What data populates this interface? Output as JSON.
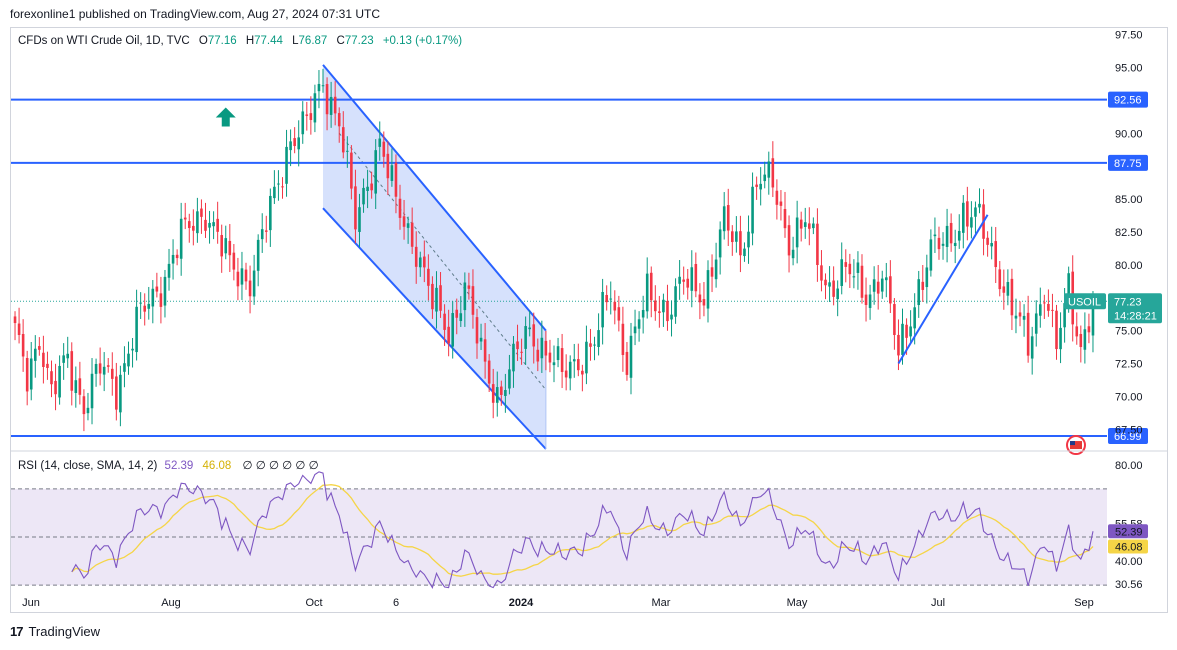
{
  "header": {
    "published": "forexonline1 published on TradingView.com, Aug 27, 2024 07:31 UTC"
  },
  "legend": {
    "symbol": "CFDs on WTI Crude Oil, 1D, TVC",
    "open_label": "O",
    "open": "77.16",
    "high_label": "H",
    "high": "77.44",
    "low_label": "L",
    "low": "76.87",
    "close_label": "C",
    "close": "77.23",
    "change": "+0.13 (+0.17%)"
  },
  "rsi_legend": {
    "label": "RSI (14, close, SMA, 14, 2)",
    "rsi_value": "52.39",
    "sma_value": "46.08",
    "empty_values": "∅  ∅  ∅  ∅  ∅  ∅"
  },
  "brand": {
    "name": "TradingView"
  },
  "colors": {
    "up": "#089981",
    "down": "#f23645",
    "line": "#2962ff",
    "channel_fill": "#c8d7fb",
    "rsi": "#7e57c2",
    "rsi_sma": "#f5d547",
    "rsi_band": "#ede7f6",
    "price_tag": "#26a69a"
  },
  "chart_data": {
    "type": "candlestick",
    "x_labels": [
      "Jun",
      "Aug",
      "Oct",
      "6",
      "2024",
      "Mar",
      "May",
      "Jul",
      "Sep"
    ],
    "bold_x_label": "2024",
    "price_axis_ticks": [
      "97.50",
      "95.00",
      "90.00",
      "85.00",
      "82.50",
      "80.00",
      "75.00",
      "72.50",
      "70.00",
      "67.50"
    ],
    "ylim": [
      66.0,
      98.0
    ],
    "horizontal_levels": [
      {
        "value": 92.56,
        "label": "92.56"
      },
      {
        "value": 87.75,
        "label": "87.75"
      },
      {
        "value": 66.99,
        "label": "66.99"
      }
    ],
    "last_price": {
      "symbol": "USOIL",
      "value": "77.23",
      "countdown": "14:28:21"
    },
    "price_path_anchors": [
      {
        "x": 0,
        "y": 74.5
      },
      {
        "x": 3,
        "y": 71.5
      },
      {
        "x": 6,
        "y": 74.8
      },
      {
        "x": 9,
        "y": 70.0
      },
      {
        "x": 13,
        "y": 72.8
      },
      {
        "x": 17,
        "y": 69.5
      },
      {
        "x": 21,
        "y": 72.0
      },
      {
        "x": 25,
        "y": 70.8
      },
      {
        "x": 30,
        "y": 75.5
      },
      {
        "x": 35,
        "y": 78.0
      },
      {
        "x": 41,
        "y": 82.0
      },
      {
        "x": 47,
        "y": 84.3
      },
      {
        "x": 53,
        "y": 79.8
      },
      {
        "x": 58,
        "y": 79.0
      },
      {
        "x": 63,
        "y": 84.0
      },
      {
        "x": 68,
        "y": 89.8
      },
      {
        "x": 72,
        "y": 90.5
      },
      {
        "x": 76,
        "y": 94.0
      },
      {
        "x": 80,
        "y": 91.0
      },
      {
        "x": 84,
        "y": 83.0
      },
      {
        "x": 87,
        "y": 86.5
      },
      {
        "x": 90,
        "y": 89.5
      },
      {
        "x": 94,
        "y": 84.5
      },
      {
        "x": 99,
        "y": 81.5
      },
      {
        "x": 103,
        "y": 77.0
      },
      {
        "x": 107,
        "y": 75.0
      },
      {
        "x": 111,
        "y": 78.5
      },
      {
        "x": 115,
        "y": 73.0
      },
      {
        "x": 119,
        "y": 70.2
      },
      {
        "x": 123,
        "y": 72.5
      },
      {
        "x": 127,
        "y": 75.0
      },
      {
        "x": 131,
        "y": 73.5
      },
      {
        "x": 135,
        "y": 71.5
      },
      {
        "x": 139,
        "y": 73.0
      },
      {
        "x": 143,
        "y": 74.0
      },
      {
        "x": 147,
        "y": 78.0
      },
      {
        "x": 151,
        "y": 73.0
      },
      {
        "x": 156,
        "y": 77.5
      },
      {
        "x": 161,
        "y": 76.8
      },
      {
        "x": 165,
        "y": 78.5
      },
      {
        "x": 170,
        "y": 78.0
      },
      {
        "x": 175,
        "y": 83.0
      },
      {
        "x": 179,
        "y": 81.0
      },
      {
        "x": 183,
        "y": 86.5
      },
      {
        "x": 187,
        "y": 86.0
      },
      {
        "x": 191,
        "y": 82.0
      },
      {
        "x": 195,
        "y": 83.2
      },
      {
        "x": 200,
        "y": 78.5
      },
      {
        "x": 205,
        "y": 79.5
      },
      {
        "x": 210,
        "y": 77.8
      },
      {
        "x": 214,
        "y": 79.5
      },
      {
        "x": 218,
        "y": 73.0
      },
      {
        "x": 222,
        "y": 77.5
      },
      {
        "x": 226,
        "y": 80.8
      },
      {
        "x": 230,
        "y": 82.0
      },
      {
        "x": 234,
        "y": 83.8
      },
      {
        "x": 238,
        "y": 83.2
      },
      {
        "x": 242,
        "y": 80.5
      },
      {
        "x": 246,
        "y": 76.5
      },
      {
        "x": 250,
        "y": 74.0
      },
      {
        "x": 254,
        "y": 78.5
      },
      {
        "x": 257,
        "y": 73.5
      },
      {
        "x": 260,
        "y": 78.0
      },
      {
        "x": 263,
        "y": 74.0
      },
      {
        "x": 266,
        "y": 77.23
      }
    ],
    "rsi": {
      "ticks": [
        "80.00",
        "40.00"
      ],
      "band": [
        30,
        70
      ],
      "marked_levels": [
        "55.58",
        "52.39",
        "46.08",
        "30.56"
      ],
      "last_rsi": "52.39",
      "last_sma": "46.08",
      "ylim": [
        28,
        82
      ]
    }
  }
}
